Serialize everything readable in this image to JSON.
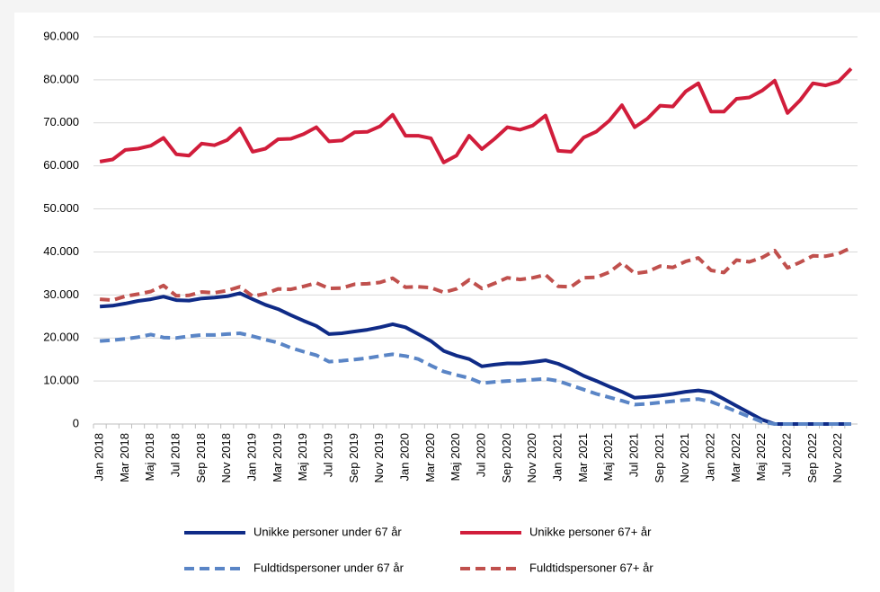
{
  "chart_data": {
    "type": "line",
    "categories": [
      "Jan 2018",
      null,
      "Mar 2018",
      null,
      "Maj 2018",
      null,
      "Jul 2018",
      null,
      "Sep 2018",
      null,
      "Nov 2018",
      null,
      "Jan 2019",
      null,
      "Mar 2019",
      null,
      "Maj 2019",
      null,
      "Jul 2019",
      null,
      "Sep 2019",
      null,
      "Nov 2019",
      null,
      "Jan 2020",
      null,
      "Mar 2020",
      null,
      "Maj 2020",
      null,
      "Jul 2020",
      null,
      "Sep 2020",
      null,
      "Nov 2020",
      null,
      "Jan 2021",
      null,
      "Mar 2021",
      null,
      "Maj 2021",
      null,
      "Jul 2021",
      null,
      "Sep 2021",
      null,
      "Nov 2021",
      null,
      "Jan 2022",
      null,
      "Mar 2022",
      null,
      "Maj 2022",
      null,
      "Jul 2022",
      null,
      "Sep 2022",
      null,
      "Nov 2022",
      null
    ],
    "series": [
      {
        "name": "Unikke personer under 67 år",
        "color": "#0f2b87",
        "dashed": false,
        "values": [
          27300,
          27500,
          28000,
          28600,
          29000,
          29600,
          28800,
          28700,
          29200,
          29400,
          29700,
          30400,
          29000,
          27700,
          26700,
          25300,
          24000,
          22800,
          20900,
          21100,
          21500,
          21900,
          22500,
          23200,
          22500,
          20900,
          19300,
          17000,
          15900,
          15100,
          13400,
          13800,
          14100,
          14100,
          14400,
          14800,
          14000,
          12700,
          11200,
          10000,
          8700,
          7500,
          6100,
          6300,
          6600,
          7000,
          7500,
          7800,
          7400,
          5800,
          4200,
          2600,
          1000,
          0,
          0,
          0,
          0,
          0,
          0,
          0
        ]
      },
      {
        "name": "Unikke personer 67+ år",
        "color": "#d11d3b",
        "dashed": false,
        "values": [
          61000,
          61500,
          63700,
          64000,
          64700,
          66500,
          62700,
          62400,
          65200,
          64800,
          66000,
          68700,
          63300,
          64000,
          66200,
          66300,
          67400,
          69000,
          65700,
          65900,
          67800,
          67900,
          69200,
          71900,
          67000,
          67000,
          66400,
          60800,
          62400,
          67000,
          63900,
          66300,
          69000,
          68400,
          69400,
          71700,
          63500,
          63300,
          66600,
          68000,
          70500,
          74100,
          69000,
          71000,
          74000,
          73800,
          77300,
          79200,
          72600,
          72600,
          75600,
          75900,
          77500,
          79800,
          72300,
          75300,
          79200,
          78700,
          79600,
          82600
        ]
      },
      {
        "name": "Fuldtidspersoner under 67 år",
        "color": "#5a85c6",
        "dashed": true,
        "values": [
          19300,
          19500,
          19800,
          20200,
          20800,
          20100,
          20000,
          20400,
          20700,
          20700,
          20900,
          21100,
          20400,
          19600,
          18900,
          17700,
          16800,
          16000,
          14500,
          14700,
          15000,
          15300,
          15800,
          16200,
          15800,
          15100,
          13600,
          12200,
          11400,
          10700,
          9500,
          9800,
          10000,
          10100,
          10300,
          10500,
          10000,
          9000,
          8000,
          7000,
          6200,
          5400,
          4500,
          4700,
          5000,
          5300,
          5600,
          5800,
          5200,
          4100,
          2900,
          1700,
          500,
          0,
          0,
          0,
          0,
          0,
          0,
          0
        ]
      },
      {
        "name": "Fuldtidspersoner 67+ år",
        "color": "#c0504d",
        "dashed": true,
        "values": [
          29000,
          28800,
          29700,
          30200,
          30800,
          32200,
          29800,
          29900,
          30700,
          30500,
          31000,
          31900,
          29700,
          30300,
          31400,
          31300,
          32000,
          32800,
          31500,
          31600,
          32500,
          32600,
          32900,
          33900,
          31800,
          31900,
          31700,
          30600,
          31400,
          33500,
          31500,
          32700,
          34000,
          33600,
          34000,
          34700,
          32000,
          31900,
          34000,
          34100,
          35300,
          37500,
          35000,
          35400,
          36700,
          36400,
          37800,
          38600,
          35700,
          35200,
          38100,
          37700,
          38700,
          40300,
          36300,
          37600,
          39100,
          39000,
          39600,
          41000
        ]
      }
    ],
    "ylim": [
      0,
      90000
    ],
    "yticks": [
      0,
      {
        "value": 10000,
        "label": "10.000"
      },
      {
        "value": 20000,
        "label": "20.000"
      },
      {
        "value": 30000,
        "label": "30.000"
      },
      {
        "value": 40000,
        "label": "40.000"
      },
      {
        "value": 50000,
        "label": "50.000"
      },
      {
        "value": 60000,
        "label": "60.000"
      },
      {
        "value": 70000,
        "label": "70.000"
      },
      {
        "value": 80000,
        "label": "80.000"
      },
      {
        "value": 90000,
        "label": "90.000"
      }
    ],
    "grid": true,
    "legend": "bottom"
  }
}
